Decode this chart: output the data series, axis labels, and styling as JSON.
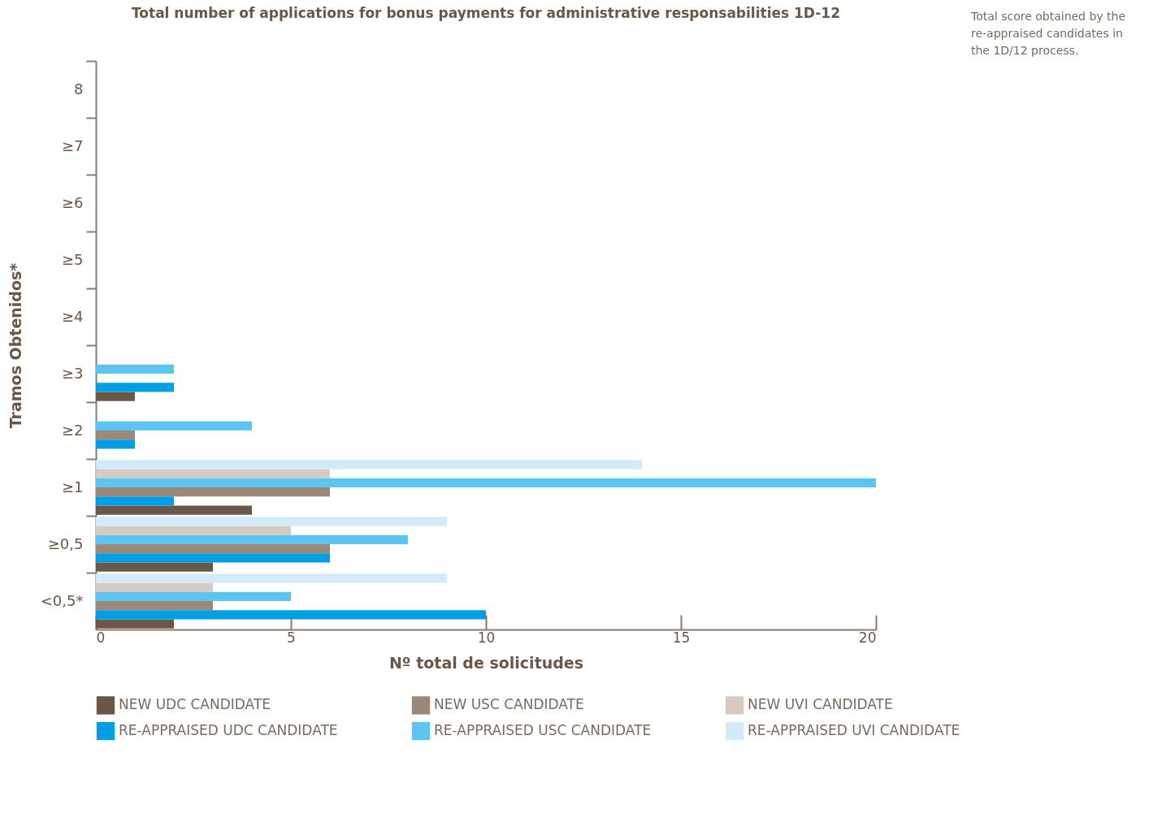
{
  "chart_data": {
    "type": "bar",
    "orientation": "horizontal",
    "title": "Total number of applications for bonus payments for administrative responsabilities 1D-12",
    "xlabel": "Nº total de solicitudes",
    "ylabel": "Tramos Obtenidos*",
    "annotations": [
      "Total score obtained by the re-appraised candidates in the 1D/12 process."
    ],
    "categories": [
      "8",
      "≥7",
      "≥6",
      "≥5",
      "≥4",
      "≥3",
      "≥2",
      "≥1",
      "≥0,5",
      "<0,5*"
    ],
    "xlim": [
      0,
      20
    ],
    "xticks": [
      0,
      5,
      10,
      15,
      20
    ],
    "grid": false,
    "legend": "bottom",
    "series": [
      {
        "name": "NEW UDC CANDIDATE",
        "color": "#6b5748",
        "values": [
          null,
          null,
          null,
          null,
          null,
          1,
          null,
          4,
          3,
          2
        ]
      },
      {
        "name": "NEW USC CANDIDATE",
        "color": "#9b8878",
        "values": [
          null,
          null,
          null,
          null,
          null,
          null,
          1,
          6,
          6,
          3
        ]
      },
      {
        "name": "NEW UVI CANDIDATE",
        "color": "#d6cbc3",
        "values": [
          null,
          null,
          null,
          null,
          null,
          null,
          null,
          6,
          5,
          3
        ]
      },
      {
        "name": "RE-APPRAISED UDC CANDIDATE",
        "color": "#009fe3",
        "values": [
          null,
          null,
          null,
          null,
          null,
          2,
          1,
          2,
          6,
          10
        ]
      },
      {
        "name": "RE-APPRAISED USC CANDIDATE",
        "color": "#5bc5f0",
        "values": [
          null,
          null,
          null,
          null,
          null,
          2,
          4,
          20,
          8,
          5
        ]
      },
      {
        "name": "RE-APPRAISED UVI CANDIDATE",
        "color": "#d3ebf9",
        "values": [
          null,
          null,
          null,
          null,
          null,
          null,
          null,
          14,
          9,
          9
        ]
      }
    ]
  }
}
